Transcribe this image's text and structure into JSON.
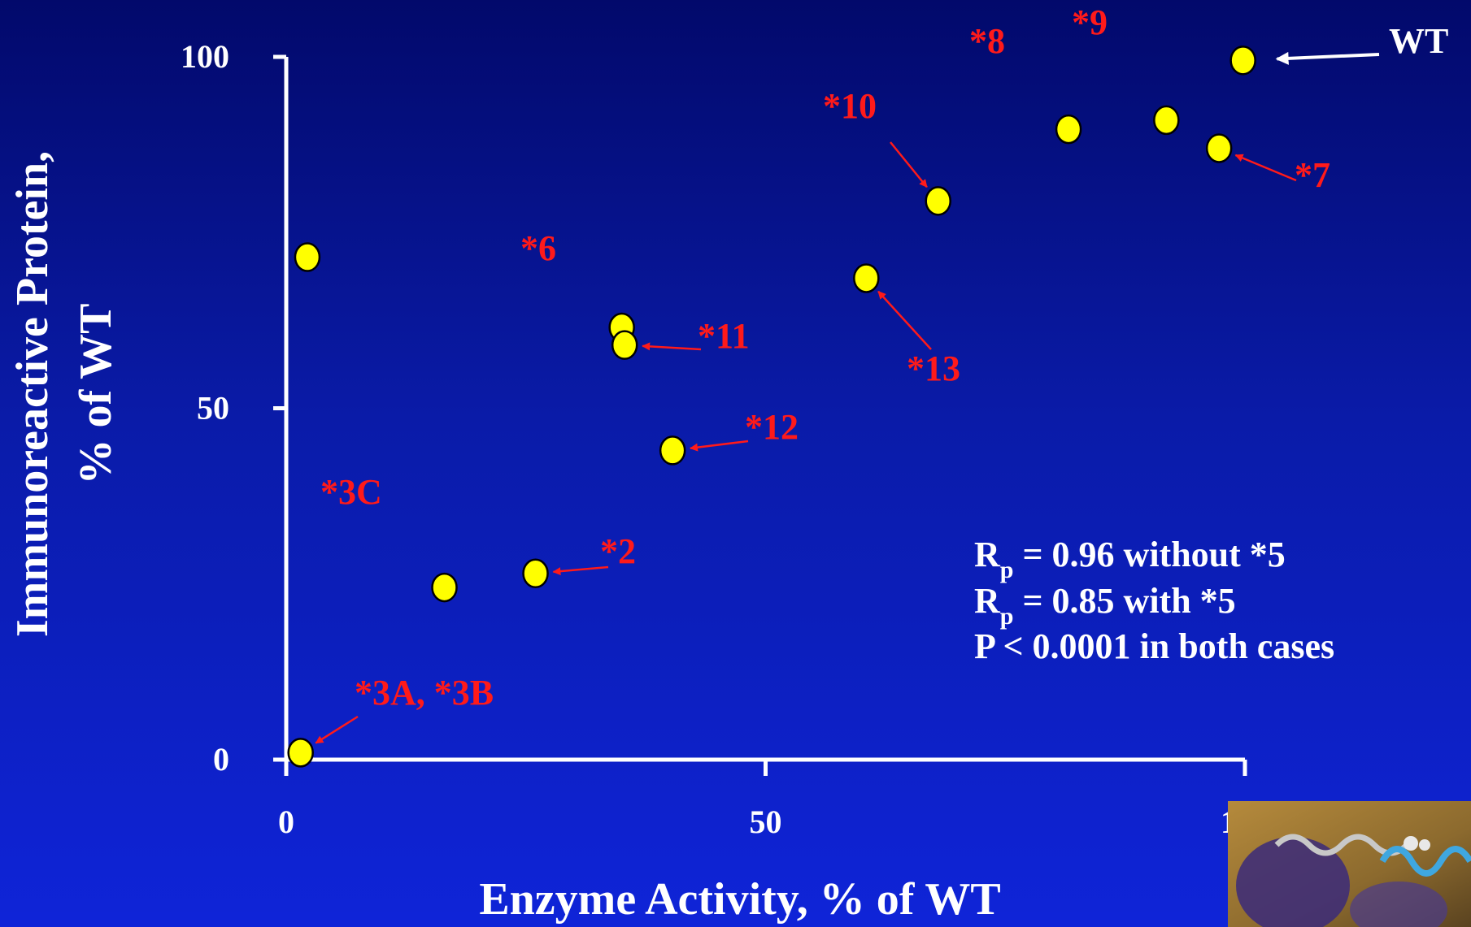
{
  "colors": {
    "background_top": "#02096b",
    "background_bottom": "#0f24d8",
    "axis": "#ffffff",
    "point_fill": "#ffff00",
    "point_stroke": "#000000",
    "mutant_label": "#ff1a1a",
    "wt_label": "#ffffff"
  },
  "chart_data": {
    "type": "scatter",
    "title": "",
    "xlabel": "Enzyme Activity, % of WT",
    "ylabel_line1": "Immunoreactive Protein,",
    "ylabel_line2": "% of WT",
    "xlim": [
      0,
      100
    ],
    "ylim": [
      0,
      100
    ],
    "x_ticks": [
      0,
      50,
      100
    ],
    "y_ticks": [
      0,
      50,
      100
    ],
    "grid": false,
    "points": [
      {
        "x": 1.5,
        "y": 1
      },
      {
        "x": 2.2,
        "y": 71.5
      },
      {
        "x": 16.5,
        "y": 24.5
      },
      {
        "x": 26,
        "y": 26.5
      },
      {
        "x": 35,
        "y": 61.5
      },
      {
        "x": 35.3,
        "y": 59
      },
      {
        "x": 40.3,
        "y": 44
      },
      {
        "x": 60.5,
        "y": 68.5
      },
      {
        "x": 68,
        "y": 79.5
      },
      {
        "x": 81.6,
        "y": 89.7
      },
      {
        "x": 91.8,
        "y": 91
      },
      {
        "x": 97.3,
        "y": 87
      },
      {
        "x": 99.8,
        "y": 99.5
      }
    ],
    "labels": [
      {
        "text": "*3A, *3B",
        "arrow_to": {
          "x": 1.5,
          "y": 1
        }
      },
      {
        "text": "*3C"
      },
      {
        "text": "*2",
        "arrow_to": {
          "x": 26,
          "y": 26.5
        }
      },
      {
        "text": "*6"
      },
      {
        "text": "*11",
        "arrow_to": {
          "x": 35.3,
          "y": 59
        }
      },
      {
        "text": "*12",
        "arrow_to": {
          "x": 40.3,
          "y": 44
        }
      },
      {
        "text": "*13",
        "arrow_to": {
          "x": 60.5,
          "y": 68.5
        }
      },
      {
        "text": "*10",
        "arrow_to": {
          "x": 68,
          "y": 79.5
        }
      },
      {
        "text": "*8"
      },
      {
        "text": "*9"
      },
      {
        "text": "*7",
        "arrow_to": {
          "x": 97.3,
          "y": 87
        }
      },
      {
        "text": "WT",
        "arrow_to": {
          "x": 99.8,
          "y": 99.5
        }
      }
    ],
    "annotations": {
      "line1": {
        "prefix": "R",
        "sub": "p",
        "suffix": " = 0.96 without *5"
      },
      "line2": {
        "prefix": "R",
        "sub": "p",
        "suffix": " = 0.85 with *5"
      },
      "line3": "P < 0.0001 in both cases"
    }
  },
  "corner_image": {
    "icon": "protein-structure-image"
  }
}
